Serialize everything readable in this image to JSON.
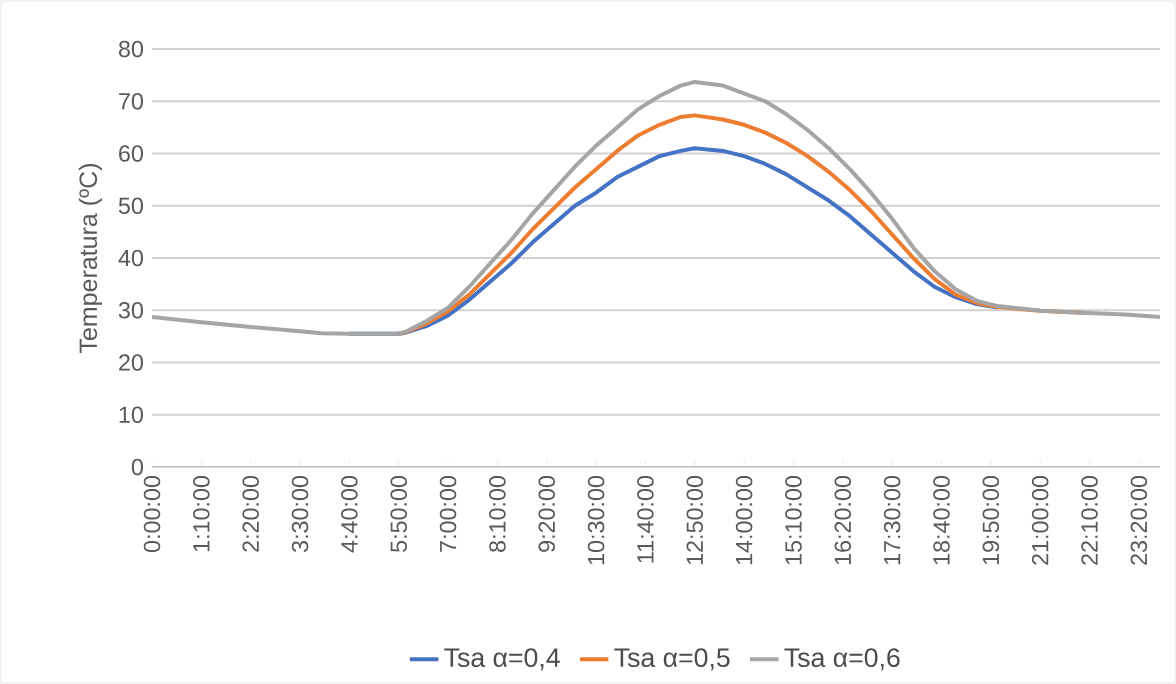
{
  "chart_data": {
    "type": "line",
    "ylabel": "Temperatura (ºC)",
    "x": [
      0,
      1.1667,
      2.3333,
      3.5,
      4,
      4.6667,
      5.8333,
      6,
      6.5,
      7,
      7.5,
      8,
      8.5,
      9,
      9.5,
      10,
      10.5,
      11,
      11.5,
      12,
      12.5,
      12.8333,
      13.5,
      14,
      14.5,
      15,
      15.5,
      16,
      16.5,
      17,
      17.5,
      18,
      18.5,
      19,
      19.5,
      20,
      21,
      22,
      23,
      23.8333
    ],
    "series": [
      {
        "name": "Tsa  α=0,4",
        "color": "#4472c4",
        "values": [
          null,
          null,
          null,
          null,
          null,
          25.5,
          25.5,
          25.7,
          27,
          29,
          32,
          35.5,
          39,
          43,
          46.5,
          50,
          52.5,
          55.5,
          57.5,
          59.5,
          60.5,
          61,
          60.5,
          59.5,
          58,
          56,
          53.5,
          51,
          48,
          44.5,
          41,
          37.5,
          34.5,
          32.5,
          31.2,
          30.5,
          null,
          null,
          null,
          null
        ]
      },
      {
        "name": "Tsa  α=0,5",
        "color": "#ed7d31",
        "values": [
          null,
          null,
          null,
          null,
          null,
          null,
          25.5,
          25.8,
          27.5,
          29.8,
          33,
          37,
          41,
          45.5,
          49.5,
          53.5,
          57,
          60.5,
          63.5,
          65.5,
          67,
          67.3,
          66.5,
          65.5,
          64,
          62,
          59.5,
          56.5,
          53,
          49,
          44.5,
          40,
          36,
          33,
          31.4,
          30.6,
          29.9,
          29.5,
          null,
          null
        ]
      },
      {
        "name": "Tsa  α=0,6",
        "color": "#a5a5a5",
        "values": [
          28.7,
          27.7,
          26.8,
          26.0,
          25.6,
          25.5,
          25.5,
          25.9,
          28,
          30.5,
          34.5,
          39,
          43.5,
          48.5,
          53,
          57.5,
          61.5,
          65,
          68.5,
          71,
          73,
          73.7,
          73,
          71.5,
          70,
          67.5,
          64.5,
          61,
          57,
          52.5,
          47.5,
          42,
          37.5,
          34,
          31.8,
          30.8,
          29.9,
          29.5,
          29.2,
          28.7
        ]
      }
    ],
    "xlim": [
      0,
      23.8333
    ],
    "xticks": [
      {
        "value": 0,
        "label": "0:00:00"
      },
      {
        "value": 1.1667,
        "label": "1:10:00"
      },
      {
        "value": 2.3333,
        "label": "2:20:00"
      },
      {
        "value": 3.5,
        "label": "3:30:00"
      },
      {
        "value": 4.6667,
        "label": "4:40:00"
      },
      {
        "value": 5.8333,
        "label": "5:50:00"
      },
      {
        "value": 7,
        "label": "7:00:00"
      },
      {
        "value": 8.1667,
        "label": "8:10:00"
      },
      {
        "value": 9.3333,
        "label": "9:20:00"
      },
      {
        "value": 10.5,
        "label": "10:30:00"
      },
      {
        "value": 11.6667,
        "label": "11:40:00"
      },
      {
        "value": 12.8333,
        "label": "12:50:00"
      },
      {
        "value": 14,
        "label": "14:00:00"
      },
      {
        "value": 15.1667,
        "label": "15:10:00"
      },
      {
        "value": 16.3333,
        "label": "16:20:00"
      },
      {
        "value": 17.5,
        "label": "17:30:00"
      },
      {
        "value": 18.6667,
        "label": "18:40:00"
      },
      {
        "value": 19.8333,
        "label": "19:50:00"
      },
      {
        "value": 21,
        "label": "21:00:00"
      },
      {
        "value": 22.1667,
        "label": "22:10:00"
      },
      {
        "value": 23.3333,
        "label": "23:20:00"
      }
    ],
    "ylim": [
      0,
      80
    ],
    "yticks": [
      0,
      10,
      20,
      30,
      40,
      50,
      60,
      70,
      80
    ],
    "grid": "y",
    "legend": "bottom",
    "marker": "none",
    "line_style": "solid"
  }
}
